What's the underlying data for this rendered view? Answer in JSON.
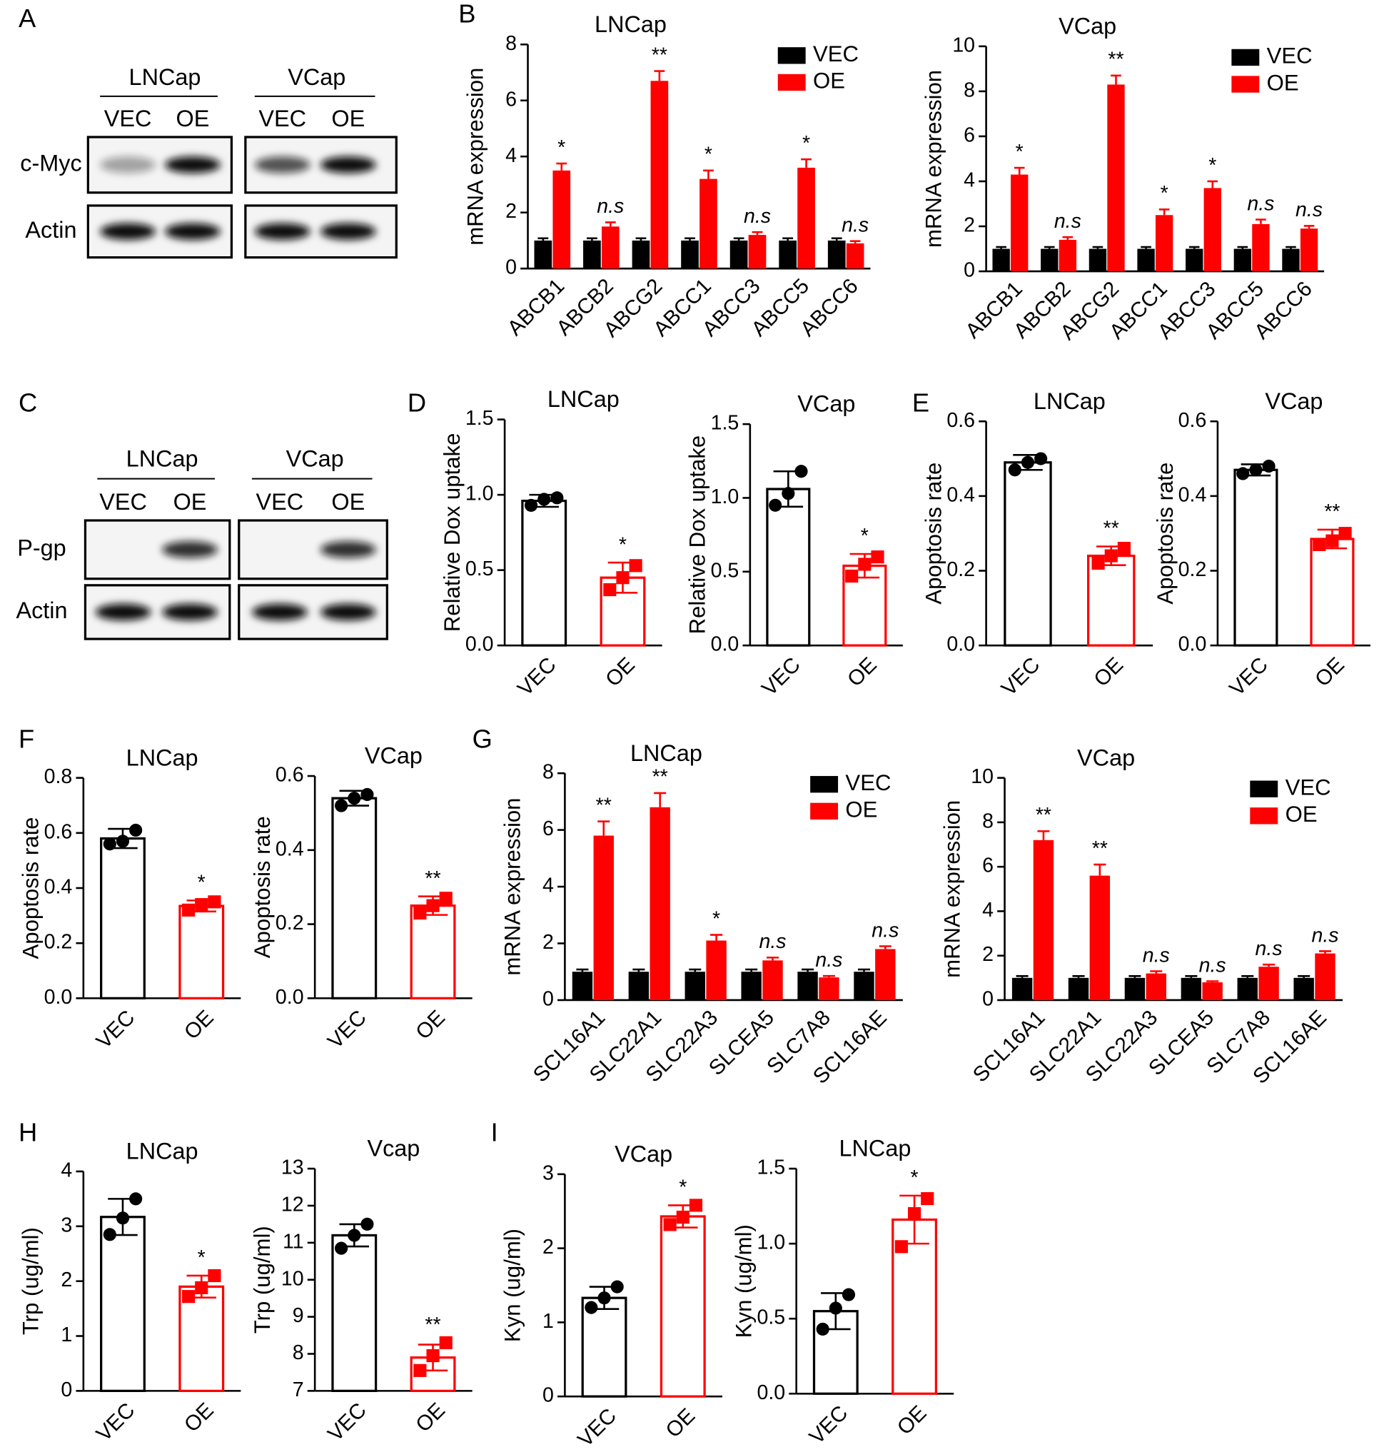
{
  "panel_labels": [
    "A",
    "B",
    "C",
    "D",
    "E",
    "F",
    "G",
    "H",
    "I"
  ],
  "blots": [
    {
      "groups": [
        {
          "name": "LNCap",
          "lanes": [
            "VEC",
            "OE"
          ]
        },
        {
          "name": "VCap",
          "lanes": [
            "VEC",
            "OE"
          ]
        }
      ],
      "rows": [
        "c-Myc",
        "Actin"
      ]
    },
    {
      "groups": [
        {
          "name": "LNCap",
          "lanes": [
            "VEC",
            "OE"
          ]
        },
        {
          "name": "VCap",
          "lanes": [
            "VEC",
            "OE"
          ]
        }
      ],
      "rows": [
        "P-gp",
        "Actin"
      ]
    }
  ],
  "chart_data": [
    {
      "type": "grouped_bar",
      "title": "LNCap",
      "ylabel": "mRNA expression",
      "categories": [
        "ABCB1",
        "ABCB2",
        "ABCG2",
        "ABCC1",
        "ABCC3",
        "ABCC5",
        "ABCC6"
      ],
      "series": [
        {
          "name": "VEC",
          "color": "#000000",
          "values": [
            1,
            1,
            1,
            1,
            1,
            1,
            1
          ],
          "errors": [
            0.08,
            0.08,
            0.08,
            0.08,
            0.08,
            0.08,
            0.08
          ]
        },
        {
          "name": "OE",
          "color": "#ff0000",
          "values": [
            3.5,
            1.5,
            6.7,
            3.2,
            1.2,
            3.6,
            0.9
          ],
          "errors": [
            0.25,
            0.15,
            0.35,
            0.3,
            0.1,
            0.3,
            0.08
          ]
        }
      ],
      "annotations": [
        "*",
        "n.s",
        "**",
        "*",
        "n.s",
        "*",
        "n.s"
      ],
      "ylim": [
        0,
        8
      ],
      "yticks": [
        0,
        2,
        4,
        6,
        8
      ],
      "legend": "upper right"
    },
    {
      "type": "grouped_bar",
      "title": "VCap",
      "ylabel": "mRNA expression",
      "categories": [
        "ABCB1",
        "ABCB2",
        "ABCG2",
        "ABCC1",
        "ABCC3",
        "ABCC5",
        "ABCC6"
      ],
      "series": [
        {
          "name": "VEC",
          "color": "#000000",
          "values": [
            1,
            1,
            1,
            1,
            1,
            1,
            1
          ],
          "errors": [
            0.08,
            0.08,
            0.08,
            0.08,
            0.08,
            0.08,
            0.08
          ]
        },
        {
          "name": "OE",
          "color": "#ff0000",
          "values": [
            4.3,
            1.4,
            8.3,
            2.5,
            3.7,
            2.1,
            1.9
          ],
          "errors": [
            0.3,
            0.12,
            0.4,
            0.25,
            0.3,
            0.2,
            0.12
          ]
        }
      ],
      "annotations": [
        "*",
        "n.s",
        "**",
        "*",
        "*",
        "n.s",
        "n.s"
      ],
      "ylim": [
        0,
        10
      ],
      "yticks": [
        0,
        2,
        4,
        6,
        8,
        10
      ],
      "legend": "upper right"
    },
    {
      "type": "bar_scatter",
      "title": "LNCap",
      "ylabel": "Relative Dox uptake",
      "categories": [
        "VEC",
        "OE"
      ],
      "values": [
        0.96,
        0.45
      ],
      "errors": [
        0.04,
        0.1
      ],
      "points": [
        [
          0.93,
          0.97,
          0.98
        ],
        [
          0.37,
          0.45,
          0.53
        ]
      ],
      "colors": [
        "#000000",
        "#ff0000"
      ],
      "markers": [
        "circle",
        "square"
      ],
      "annotation": "*",
      "ylim": [
        0,
        1.5
      ],
      "yticks": [
        {
          "value": 0,
          "label": "0.0"
        },
        0.5,
        {
          "value": 1,
          "label": "1.0"
        },
        1.5
      ]
    },
    {
      "type": "bar_scatter",
      "title": "VCap",
      "ylabel": "Relative Dox uptake",
      "categories": [
        "VEC",
        "OE"
      ],
      "values": [
        1.06,
        0.54
      ],
      "errors": [
        0.12,
        0.08
      ],
      "points": [
        [
          0.95,
          1.03,
          1.18
        ],
        [
          0.47,
          0.55,
          0.6
        ]
      ],
      "colors": [
        "#000000",
        "#ff0000"
      ],
      "markers": [
        "circle",
        "square"
      ],
      "annotation": "*",
      "ylim": [
        0,
        1.5
      ],
      "yticks": [
        {
          "value": 0,
          "label": "0.0"
        },
        0.5,
        {
          "value": 1,
          "label": "1.0"
        },
        1.5
      ]
    },
    {
      "type": "bar_scatter",
      "title": "LNCap",
      "ylabel": "Apoptosis rate",
      "categories": [
        "VEC",
        "OE"
      ],
      "values": [
        0.49,
        0.24
      ],
      "errors": [
        0.02,
        0.025
      ],
      "points": [
        [
          0.47,
          0.49,
          0.5
        ],
        [
          0.22,
          0.24,
          0.26
        ]
      ],
      "colors": [
        "#000000",
        "#ff0000"
      ],
      "markers": [
        "circle",
        "square"
      ],
      "annotation": "**",
      "ylim": [
        0,
        0.6
      ],
      "yticks": [
        {
          "value": 0,
          "label": "0.0"
        },
        0.2,
        0.4,
        0.6
      ]
    },
    {
      "type": "bar_scatter",
      "title": "VCap",
      "ylabel": "Apoptosis rate",
      "categories": [
        "VEC",
        "OE"
      ],
      "values": [
        0.47,
        0.285
      ],
      "errors": [
        0.015,
        0.025
      ],
      "points": [
        [
          0.46,
          0.47,
          0.48
        ],
        [
          0.27,
          0.28,
          0.3
        ]
      ],
      "colors": [
        "#000000",
        "#ff0000"
      ],
      "markers": [
        "circle",
        "square"
      ],
      "annotation": "**",
      "ylim": [
        0,
        0.6
      ],
      "yticks": [
        {
          "value": 0,
          "label": "0.0"
        },
        0.2,
        0.4,
        0.6
      ]
    },
    {
      "type": "bar_scatter",
      "title": "LNCap",
      "ylabel": "Apoptosis rate",
      "categories": [
        "VEC",
        "OE"
      ],
      "values": [
        0.58,
        0.335
      ],
      "errors": [
        0.035,
        0.02
      ],
      "points": [
        [
          0.56,
          0.57,
          0.61
        ],
        [
          0.32,
          0.34,
          0.35
        ]
      ],
      "colors": [
        "#000000",
        "#ff0000"
      ],
      "markers": [
        "circle",
        "square"
      ],
      "annotation": "*",
      "ylim": [
        0,
        0.8
      ],
      "yticks": [
        {
          "value": 0,
          "label": "0.0"
        },
        0.2,
        0.4,
        0.6,
        0.8
      ]
    },
    {
      "type": "bar_scatter",
      "title": "VCap",
      "ylabel": "Apoptosis rate",
      "categories": [
        "VEC",
        "OE"
      ],
      "values": [
        0.54,
        0.25
      ],
      "errors": [
        0.02,
        0.025
      ],
      "points": [
        [
          0.52,
          0.54,
          0.55
        ],
        [
          0.23,
          0.25,
          0.27
        ]
      ],
      "colors": [
        "#000000",
        "#ff0000"
      ],
      "markers": [
        "circle",
        "square"
      ],
      "annotation": "**",
      "ylim": [
        0,
        0.6
      ],
      "yticks": [
        {
          "value": 0,
          "label": "0.0"
        },
        0.2,
        0.4,
        0.6
      ]
    },
    {
      "type": "grouped_bar",
      "title": "LNCap",
      "ylabel": "mRNA expression",
      "categories": [
        "SCL16A1",
        "SLC22A1",
        "SLC22A3",
        "SLCEA5",
        "SLC7A8",
        "SCL16AE"
      ],
      "series": [
        {
          "name": "VEC",
          "color": "#000000",
          "values": [
            1,
            1,
            1,
            1,
            1,
            1
          ],
          "errors": [
            0.08,
            0.08,
            0.08,
            0.08,
            0.08,
            0.08
          ]
        },
        {
          "name": "OE",
          "color": "#ff0000",
          "values": [
            5.8,
            6.8,
            2.1,
            1.4,
            0.8,
            1.8
          ],
          "errors": [
            0.5,
            0.5,
            0.2,
            0.1,
            0.05,
            0.1
          ]
        }
      ],
      "annotations": [
        "**",
        "**",
        "*",
        "n.s",
        "n.s",
        "n.s"
      ],
      "ylim": [
        0,
        8
      ],
      "yticks": [
        0,
        2,
        4,
        6,
        8
      ],
      "legend": "upper right"
    },
    {
      "type": "grouped_bar",
      "title": "VCap",
      "ylabel": "mRNA expression",
      "categories": [
        "SCL16A1",
        "SLC22A1",
        "SLC22A3",
        "SLCEA5",
        "SLC7A8",
        "SCL16AE"
      ],
      "series": [
        {
          "name": "VEC",
          "color": "#000000",
          "values": [
            1,
            1,
            1,
            1,
            1,
            1
          ],
          "errors": [
            0.08,
            0.08,
            0.08,
            0.08,
            0.08,
            0.08
          ]
        },
        {
          "name": "OE",
          "color": "#ff0000",
          "values": [
            7.2,
            5.6,
            1.2,
            0.8,
            1.5,
            2.1
          ],
          "errors": [
            0.4,
            0.5,
            0.1,
            0.05,
            0.1,
            0.1
          ]
        }
      ],
      "annotations": [
        "**",
        "**",
        "n.s",
        "n.s",
        "n.s",
        "n.s"
      ],
      "ylim": [
        0,
        10
      ],
      "yticks": [
        0,
        2,
        4,
        6,
        8,
        10
      ],
      "legend": "upper right"
    },
    {
      "type": "bar_scatter",
      "title": "LNCap",
      "ylabel": "Trp (ug/ml)",
      "categories": [
        "VEC",
        "OE"
      ],
      "values": [
        3.17,
        1.9
      ],
      "errors": [
        0.33,
        0.2
      ],
      "points": [
        [
          2.85,
          3.15,
          3.5
        ],
        [
          1.72,
          1.88,
          2.1
        ]
      ],
      "colors": [
        "#000000",
        "#ff0000"
      ],
      "markers": [
        "circle",
        "square"
      ],
      "annotation": "*",
      "ylim": [
        0,
        4
      ],
      "yticks": [
        0,
        1,
        2,
        3,
        4
      ]
    },
    {
      "type": "bar_scatter",
      "title": "Vcap",
      "ylabel": "Trp (ug/ml)",
      "categories": [
        "VEC",
        "OE"
      ],
      "values": [
        11.2,
        7.9
      ],
      "errors": [
        0.3,
        0.35
      ],
      "points": [
        [
          10.85,
          11.2,
          11.5
        ],
        [
          7.55,
          7.95,
          8.3
        ]
      ],
      "colors": [
        "#000000",
        "#ff0000"
      ],
      "markers": [
        "circle",
        "square"
      ],
      "annotation": "**",
      "ylim": [
        7,
        13
      ],
      "yticks": [
        7,
        8,
        9,
        10,
        11,
        12,
        13
      ]
    },
    {
      "type": "bar_scatter",
      "title": "VCap",
      "ylabel": "Kyn (ug/ml)",
      "categories": [
        "VEC",
        "OE"
      ],
      "values": [
        1.33,
        2.43
      ],
      "errors": [
        0.15,
        0.15
      ],
      "points": [
        [
          1.2,
          1.33,
          1.48
        ],
        [
          2.32,
          2.42,
          2.58
        ]
      ],
      "colors": [
        "#000000",
        "#ff0000"
      ],
      "markers": [
        "circle",
        "square"
      ],
      "annotation": "*",
      "ylim": [
        0,
        3
      ],
      "yticks": [
        0,
        1,
        2,
        3
      ]
    },
    {
      "type": "bar_scatter",
      "title": "LNCap",
      "ylabel": "Kyn (ug/ml)",
      "categories": [
        "VEC",
        "OE"
      ],
      "values": [
        0.55,
        1.16
      ],
      "errors": [
        0.12,
        0.16
      ],
      "points": [
        [
          0.43,
          0.57,
          0.66
        ],
        [
          0.98,
          1.2,
          1.3
        ]
      ],
      "colors": [
        "#000000",
        "#ff0000"
      ],
      "markers": [
        "circle",
        "square"
      ],
      "annotation": "*",
      "ylim": [
        0,
        1.5
      ],
      "yticks": [
        {
          "value": 0,
          "label": "0.0"
        },
        0.5,
        {
          "value": 1,
          "label": "1.0"
        },
        1.5
      ]
    }
  ]
}
